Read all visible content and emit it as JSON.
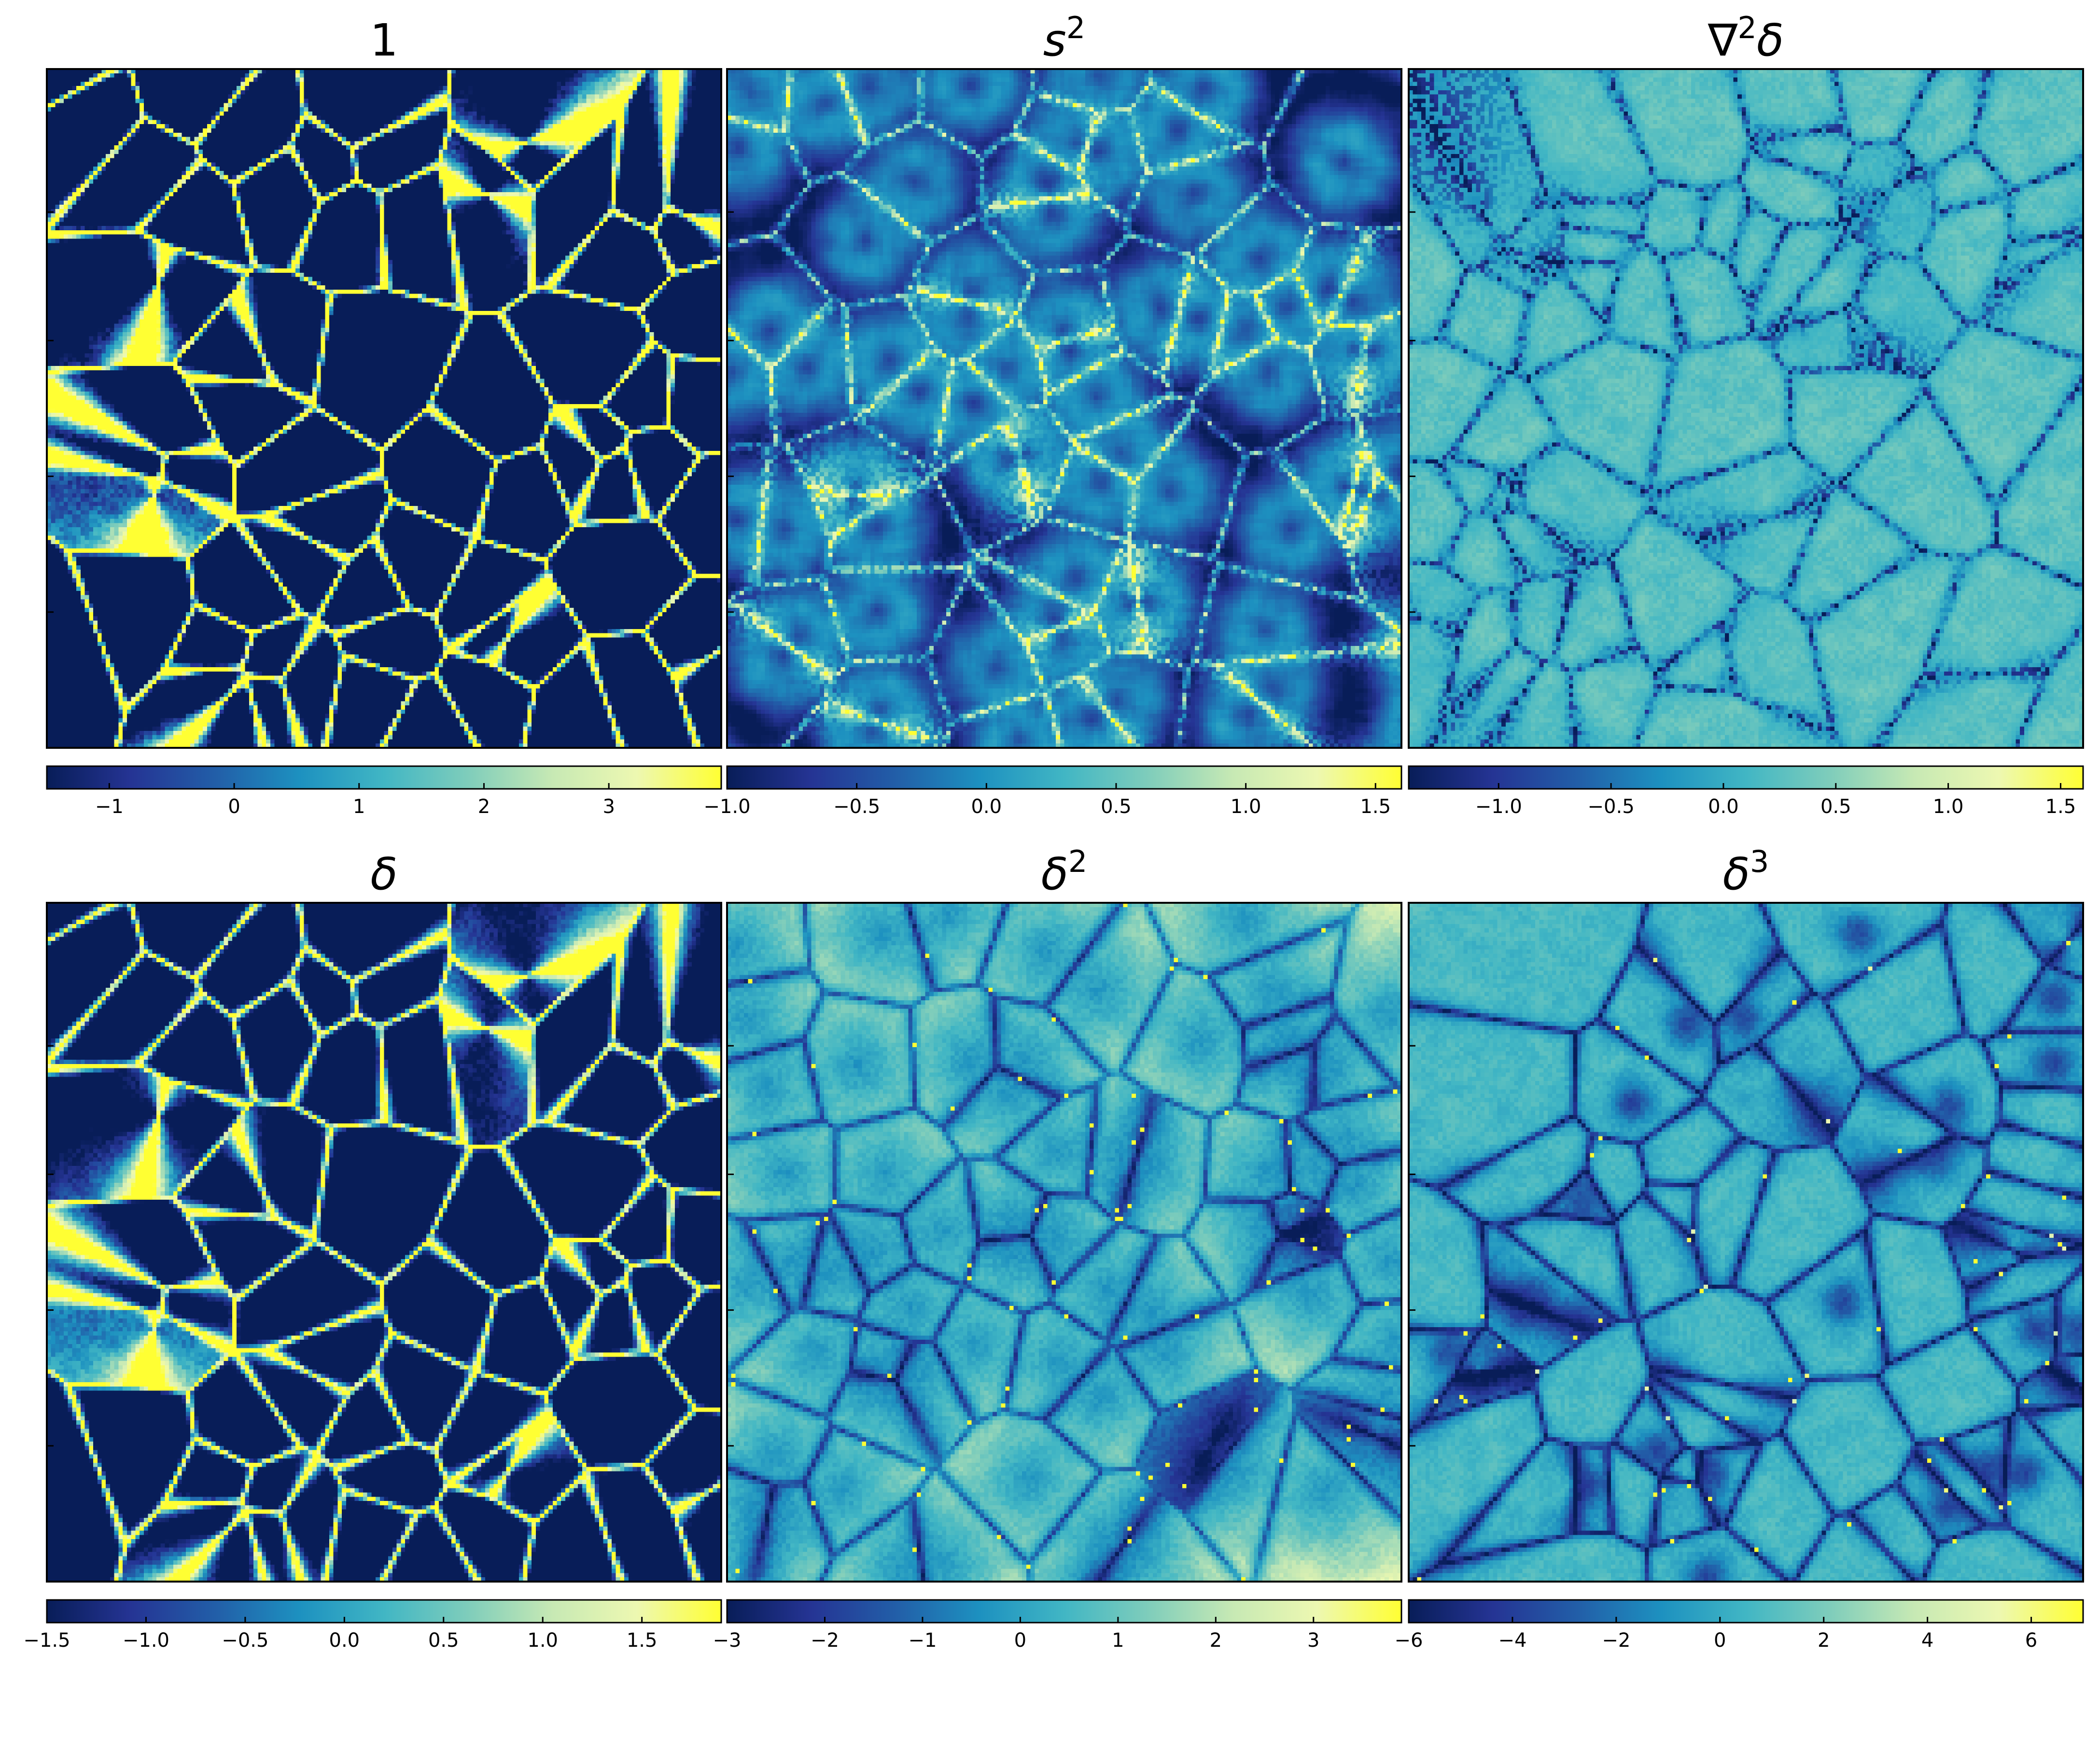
{
  "colormap": [
    "#081d58",
    "#253494",
    "#225ea8",
    "#1d91c0",
    "#41b6c4",
    "#7fcdbb",
    "#c7e9b4",
    "#edf8b1",
    "#ffff33"
  ],
  "chart_data": [
    {
      "type": "heatmap",
      "title_parts": [
        {
          "t": "1"
        }
      ],
      "colorbar": {
        "range": [
          -1.5,
          3.9
        ],
        "ticks": [
          -1,
          0,
          1,
          2,
          3
        ],
        "tick_labels": [
          "−1",
          "0",
          "1",
          "2",
          "3"
        ]
      },
      "field": {
        "seed": 11,
        "style": "density",
        "contrast": 3.2,
        "bias": -0.1
      }
    },
    {
      "type": "heatmap",
      "title_parts": [
        {
          "t": "s"
        },
        {
          "sup": "2"
        }
      ],
      "colorbar": {
        "range": [
          -1.0,
          1.6
        ],
        "ticks": [
          -1.0,
          -0.5,
          0.0,
          0.5,
          1.0,
          1.5
        ],
        "tick_labels": [
          "−1.0",
          "−0.5",
          "0.0",
          "0.5",
          "1.0",
          "1.5"
        ]
      },
      "field": {
        "seed": 23,
        "style": "shear",
        "contrast": 1.6,
        "bias": 0.05
      }
    },
    {
      "type": "heatmap",
      "title_parts": [
        {
          "t": "∇"
        },
        {
          "sup": "2"
        },
        {
          "t": "δ"
        }
      ],
      "colorbar": {
        "range": [
          -1.4,
          1.6
        ],
        "ticks": [
          -1.0,
          -0.5,
          0.0,
          0.5,
          1.0,
          1.5
        ],
        "tick_labels": [
          "−1.0",
          "−0.5",
          "0.0",
          "0.5",
          "1.0",
          "1.5"
        ]
      },
      "field": {
        "seed": 37,
        "style": "laplace",
        "contrast": 1.2,
        "bias": 0.25
      }
    },
    {
      "type": "heatmap",
      "title_parts": [
        {
          "t": "δ"
        }
      ],
      "colorbar": {
        "range": [
          -1.5,
          1.9
        ],
        "ticks": [
          -1.5,
          -1.0,
          -0.5,
          0.0,
          0.5,
          1.0,
          1.5
        ],
        "tick_labels": [
          "−1.5",
          "−1.0",
          "−0.5",
          "0.0",
          "0.5",
          "1.0",
          "1.5"
        ]
      },
      "field": {
        "seed": 11,
        "style": "density",
        "contrast": 2.2,
        "bias": 0.05
      }
    },
    {
      "type": "heatmap",
      "title_parts": [
        {
          "t": "δ"
        },
        {
          "sup": "2"
        }
      ],
      "colorbar": {
        "range": [
          -3,
          3.9
        ],
        "ticks": [
          -3,
          -2,
          -1,
          0,
          1,
          2,
          3
        ],
        "tick_labels": [
          "−3",
          "−2",
          "−1",
          "0",
          "1",
          "2",
          "3"
        ]
      },
      "field": {
        "seed": 53,
        "style": "cells",
        "contrast": 1.4,
        "bias": 0.35
      }
    },
    {
      "type": "heatmap",
      "title_parts": [
        {
          "t": "δ"
        },
        {
          "sup": "3"
        }
      ],
      "colorbar": {
        "range": [
          -6,
          7
        ],
        "ticks": [
          -6,
          -4,
          -2,
          0,
          2,
          4,
          6
        ],
        "tick_labels": [
          "−6",
          "−4",
          "−2",
          "0",
          "2",
          "4",
          "6"
        ]
      },
      "field": {
        "seed": 71,
        "style": "cubic",
        "contrast": 1.3,
        "bias": 0.2
      }
    }
  ]
}
